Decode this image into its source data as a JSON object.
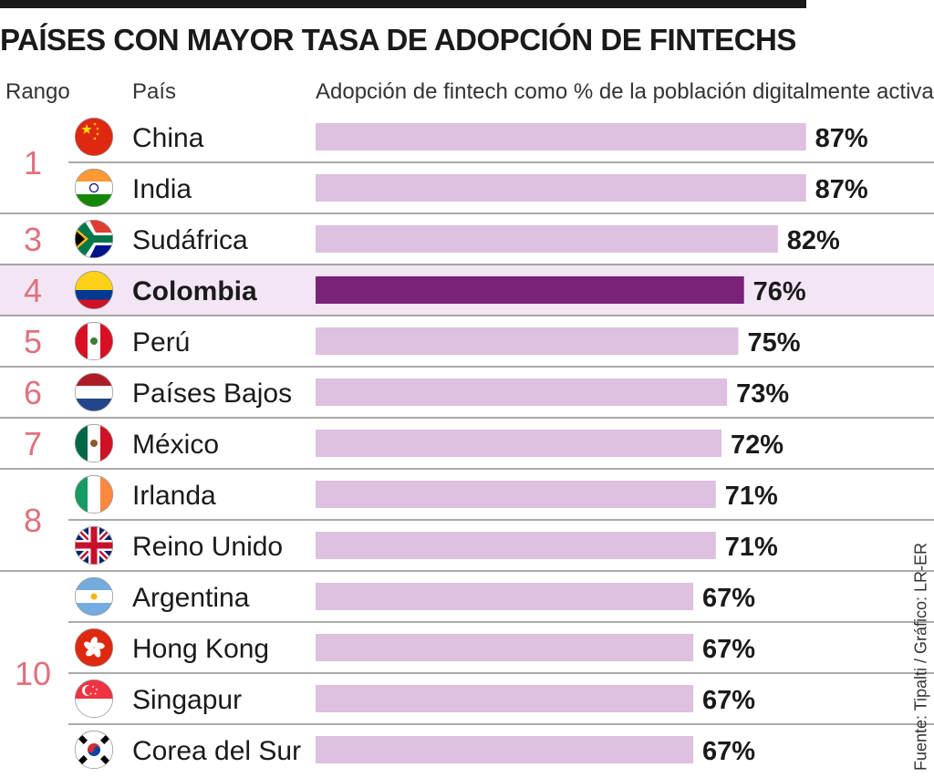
{
  "title": "PAÍSES CON MAYOR TASA DE ADOPCIÓN DE FINTECHS",
  "headers": {
    "rank": "Rango",
    "country": "País",
    "metric": "Adopción de fintech como % de la población digitalmente activa"
  },
  "source": "Fuente: Tipalti / Gráfico: LR-ER",
  "colors": {
    "bar": "#dec0e0",
    "bar_highlight": "#7a2178",
    "row_highlight": "#f3e6f4",
    "rank_text": "#e0707e",
    "divider": "#555555"
  },
  "chart_data": {
    "type": "bar",
    "orientation": "horizontal",
    "title": "PAÍSES CON MAYOR TASA DE ADOPCIÓN DE FINTECHS",
    "xlabel": "Adopción de fintech como % de la población digitalmente activa",
    "value_suffix": "%",
    "xlim": [
      0,
      100
    ],
    "highlight": "Colombia",
    "rank_groups": [
      {
        "rank": "1",
        "size": 2
      },
      {
        "rank": "3",
        "size": 1
      },
      {
        "rank": "4",
        "size": 1
      },
      {
        "rank": "5",
        "size": 1
      },
      {
        "rank": "6",
        "size": 1
      },
      {
        "rank": "7",
        "size": 1
      },
      {
        "rank": "8",
        "size": 2
      },
      {
        "rank": "10",
        "size": 4
      }
    ],
    "rows": [
      {
        "country": "China",
        "flag": "china-flag-icon",
        "value": 87,
        "label": "87%"
      },
      {
        "country": "India",
        "flag": "india-flag-icon",
        "value": 87,
        "label": "87%"
      },
      {
        "country": "Sudáfrica",
        "flag": "south-africa-flag-icon",
        "value": 82,
        "label": "82%"
      },
      {
        "country": "Colombia",
        "flag": "colombia-flag-icon",
        "value": 76,
        "label": "76%"
      },
      {
        "country": "Perú",
        "flag": "peru-flag-icon",
        "value": 75,
        "label": "75%"
      },
      {
        "country": "Países Bajos",
        "flag": "netherlands-flag-icon",
        "value": 73,
        "label": "73%"
      },
      {
        "country": "México",
        "flag": "mexico-flag-icon",
        "value": 72,
        "label": "72%"
      },
      {
        "country": "Irlanda",
        "flag": "ireland-flag-icon",
        "value": 71,
        "label": "71%"
      },
      {
        "country": "Reino Unido",
        "flag": "uk-flag-icon",
        "value": 71,
        "label": "71%"
      },
      {
        "country": "Argentina",
        "flag": "argentina-flag-icon",
        "value": 67,
        "label": "67%"
      },
      {
        "country": "Hong Kong",
        "flag": "hong-kong-flag-icon",
        "value": 67,
        "label": "67%"
      },
      {
        "country": "Singapur",
        "flag": "singapore-flag-icon",
        "value": 67,
        "label": "67%"
      },
      {
        "country": "Corea del Sur",
        "flag": "south-korea-flag-icon",
        "value": 67,
        "label": "67%"
      }
    ]
  }
}
